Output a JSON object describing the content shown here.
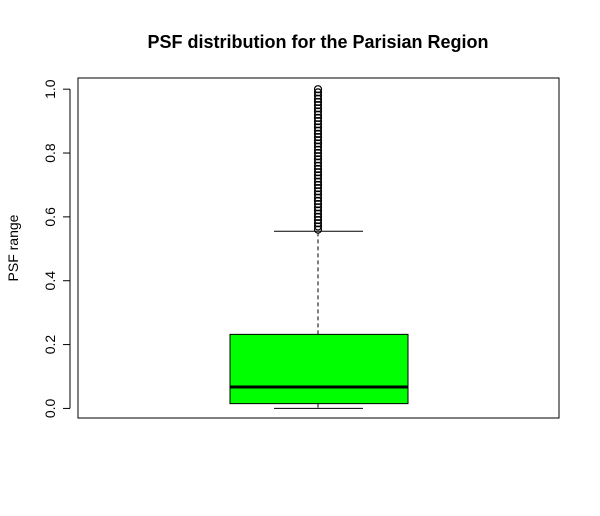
{
  "chart_data": {
    "type": "box",
    "title": "PSF distribution for the Parisian Region",
    "xlabel": "",
    "ylabel": "PSF range",
    "ylim": [
      -0.03,
      1.035
    ],
    "yticks": [
      "0.0",
      "0.2",
      "0.4",
      "0.6",
      "0.8",
      "1.0"
    ],
    "box": {
      "min": 0.0,
      "q1": 0.015,
      "median": 0.067,
      "q3": 0.232,
      "whisker_high": 0.555,
      "fill": "#00ff00",
      "outliers": [
        0.56,
        0.57,
        0.58,
        0.59,
        0.6,
        0.61,
        0.62,
        0.63,
        0.64,
        0.65,
        0.66,
        0.67,
        0.68,
        0.69,
        0.7,
        0.71,
        0.72,
        0.73,
        0.74,
        0.75,
        0.76,
        0.77,
        0.78,
        0.79,
        0.8,
        0.81,
        0.82,
        0.83,
        0.84,
        0.85,
        0.86,
        0.87,
        0.88,
        0.89,
        0.9,
        0.91,
        0.92,
        0.93,
        0.94,
        0.95,
        0.96,
        0.97,
        0.98,
        0.99,
        1.0
      ]
    },
    "grid": false,
    "legend": "none"
  }
}
